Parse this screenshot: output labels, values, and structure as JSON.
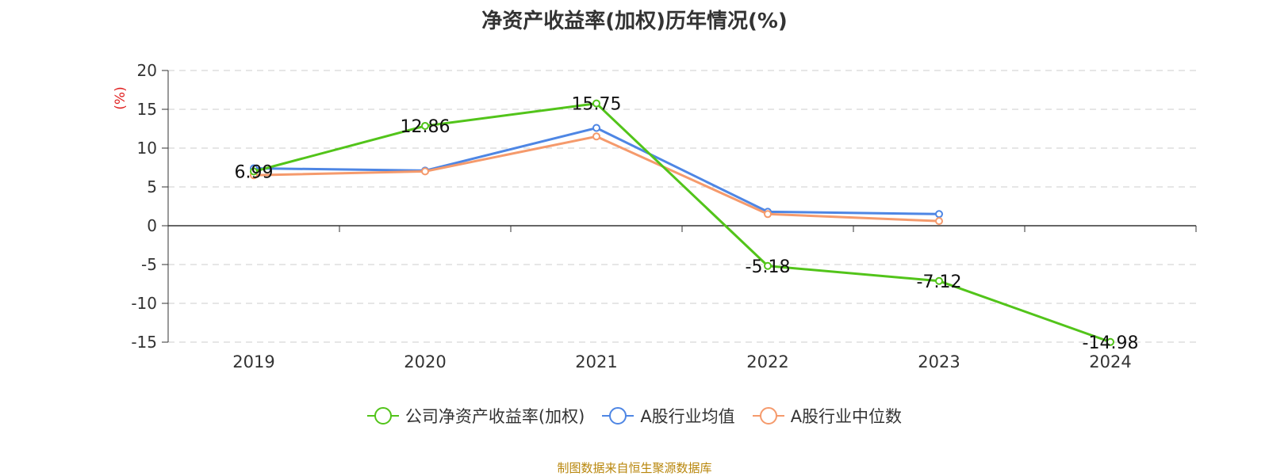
{
  "chart_data": {
    "type": "line",
    "title": "净资产收益率(加权)历年情况(%)",
    "ylabel": "(%)",
    "xlabel": "",
    "categories": [
      "2019",
      "2020",
      "2021",
      "2022",
      "2023",
      "2024"
    ],
    "ylim": [
      -15,
      20
    ],
    "yticks": [
      "20",
      "15",
      "10",
      "5",
      "0",
      "-5",
      "-10",
      "-15"
    ],
    "grid": true,
    "legend_position": "bottom",
    "series": [
      {
        "name": "公司净资产收益率(加权)",
        "color": "#52c41a",
        "values": [
          6.99,
          12.86,
          15.75,
          -5.18,
          -7.12,
          -14.98
        ],
        "labels": [
          "6.99",
          "12.86",
          "15.75",
          "-5.18",
          "-7.12",
          "-14.98"
        ]
      },
      {
        "name": "A股行业均值",
        "color": "#4e86e4",
        "values": [
          7.4,
          7.1,
          12.6,
          1.8,
          1.5,
          null
        ]
      },
      {
        "name": "A股行业中位数",
        "color": "#f59a6c",
        "values": [
          6.5,
          7.0,
          11.5,
          1.5,
          0.6,
          null
        ]
      }
    ]
  },
  "source": "制图数据来自恒生聚源数据库"
}
